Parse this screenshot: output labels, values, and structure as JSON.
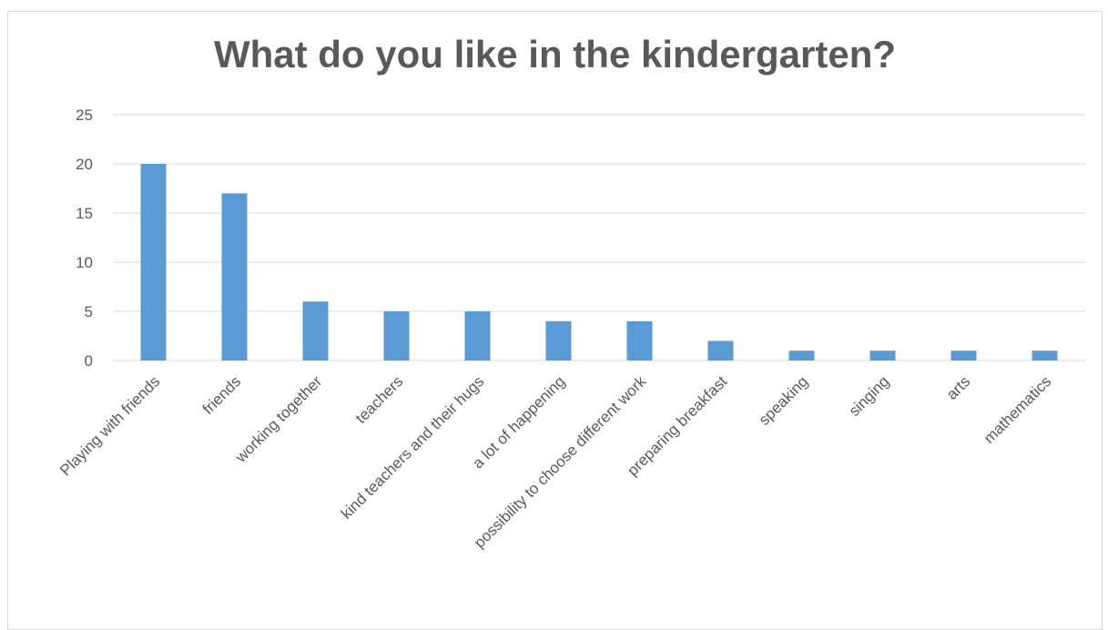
{
  "chart_data": {
    "type": "bar",
    "title": "What do you like in the kindergarten?",
    "xlabel": "",
    "ylabel": "",
    "categories": [
      "Playing with friends",
      "friends",
      "working together",
      "teachers",
      "kind teachers and their hugs",
      "a lot of happening",
      "possibility to choose different work",
      "preparing breakfast",
      "speaking",
      "singing",
      "arts",
      "mathematics"
    ],
    "values": [
      20,
      17,
      6,
      5,
      5,
      4,
      4,
      2,
      1,
      1,
      1,
      1
    ],
    "ylim": [
      0,
      25
    ],
    "yticks": [
      "0",
      "5",
      "10",
      "15",
      "20",
      "25"
    ],
    "grid": true,
    "legend": "none",
    "bar_color": "#5b9bd5",
    "grid_color": "#d9d9d9"
  }
}
